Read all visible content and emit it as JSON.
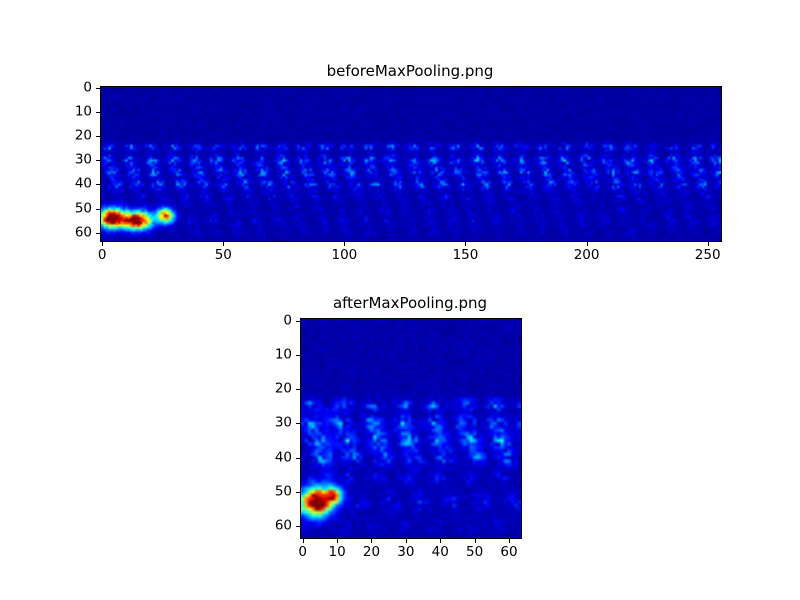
{
  "page": {
    "background": "#ffffff"
  },
  "chart_data": [
    {
      "type": "heatmap",
      "title": "beforeMaxPooling.png",
      "colormap": "jet",
      "cols": 256,
      "rows": 64,
      "xlabel": "",
      "ylabel": "",
      "x_ticks": [
        0,
        50,
        100,
        150,
        200,
        250
      ],
      "y_ticks": [
        0,
        10,
        20,
        30,
        40,
        50,
        60
      ],
      "xlim": [
        -0.5,
        255.5
      ],
      "ylim": [
        63.5,
        -0.5
      ],
      "grid": false,
      "legend": "none",
      "field": {
        "seed": 1337,
        "base": 0.02,
        "noise": 0.03,
        "bands": [
          {
            "row": 24.5,
            "spread": 1.1,
            "intensity": 0.3,
            "sparsity": 1.4
          },
          {
            "row": 30.0,
            "spread": 1.6,
            "intensity": 0.34,
            "sparsity": 1.3
          },
          {
            "row": 35.0,
            "spread": 1.6,
            "intensity": 0.32,
            "sparsity": 1.3
          },
          {
            "row": 40.0,
            "spread": 1.6,
            "intensity": 0.3,
            "sparsity": 1.4
          },
          {
            "row": 45.0,
            "spread": 1.6,
            "intensity": 0.14,
            "sparsity": 1.8
          },
          {
            "row": 50.0,
            "spread": 2.0,
            "intensity": 0.1,
            "sparsity": 2.2
          },
          {
            "row": 55.0,
            "spread": 2.2,
            "intensity": 0.12,
            "sparsity": 2.0
          },
          {
            "row": 60.0,
            "spread": 1.8,
            "intensity": 0.08,
            "sparsity": 2.4
          }
        ],
        "vstreaks": [],
        "hotspots": [
          {
            "x": 4,
            "y": 54,
            "rx": 3.2,
            "ry": 2.6,
            "amp": 1.15
          },
          {
            "x": 14,
            "y": 55,
            "rx": 4.0,
            "ry": 2.4,
            "amp": 1.1
          },
          {
            "x": 26,
            "y": 53,
            "rx": 2.4,
            "ry": 2.0,
            "amp": 0.8
          }
        ]
      }
    },
    {
      "type": "heatmap",
      "title": "afterMaxPooling.png",
      "colormap": "jet",
      "cols": 64,
      "rows": 64,
      "xlabel": "",
      "ylabel": "",
      "x_ticks": [
        0,
        10,
        20,
        30,
        40,
        50,
        60
      ],
      "y_ticks": [
        0,
        10,
        20,
        30,
        40,
        50,
        60
      ],
      "xlim": [
        -0.5,
        63.5
      ],
      "ylim": [
        63.5,
        -0.5
      ],
      "grid": false,
      "legend": "none",
      "field": {
        "seed": 2024,
        "base": 0.025,
        "noise": 0.035,
        "bands": [
          {
            "row": 24.5,
            "spread": 1.2,
            "intensity": 0.3,
            "sparsity": 1.2
          },
          {
            "row": 30.0,
            "spread": 1.7,
            "intensity": 0.34,
            "sparsity": 1.1
          },
          {
            "row": 35.0,
            "spread": 1.8,
            "intensity": 0.38,
            "sparsity": 1.0
          },
          {
            "row": 40.0,
            "spread": 1.7,
            "intensity": 0.28,
            "sparsity": 1.2
          },
          {
            "row": 46.0,
            "spread": 1.6,
            "intensity": 0.14,
            "sparsity": 1.8
          },
          {
            "row": 53.0,
            "spread": 2.4,
            "intensity": 0.16,
            "sparsity": 1.6
          },
          {
            "row": 60.0,
            "spread": 1.6,
            "intensity": 0.1,
            "sparsity": 2.2
          }
        ],
        "vstreaks": [
          {
            "x": 7.5,
            "spread": 1.4,
            "row0": 26,
            "row1": 48,
            "intensity": 0.1
          }
        ],
        "hotspots": [
          {
            "x": 4,
            "y": 53,
            "rx": 2.8,
            "ry": 2.6,
            "amp": 1.15
          },
          {
            "x": 9,
            "y": 51,
            "rx": 1.8,
            "ry": 1.6,
            "amp": 0.65
          }
        ]
      }
    }
  ]
}
